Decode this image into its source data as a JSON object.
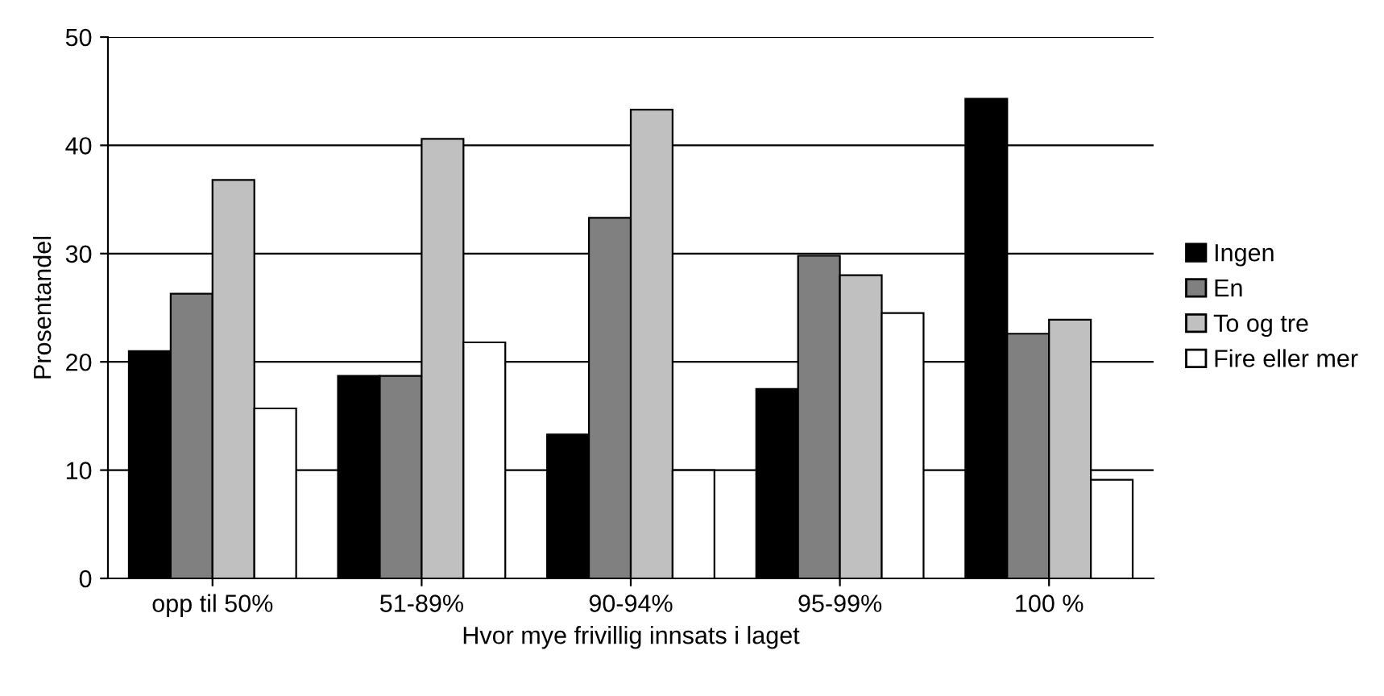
{
  "chart_data": {
    "type": "bar",
    "xlabel": "Hvor mye frivillig innsats i laget",
    "ylabel": "Prosentandel",
    "categories": [
      "opp til 50%",
      "51-89%",
      "90-94%",
      "95-99%",
      "100 %"
    ],
    "series": [
      {
        "name": "Ingen",
        "color": "#000000",
        "values": [
          21.0,
          18.7,
          13.3,
          17.5,
          44.3
        ]
      },
      {
        "name": "En",
        "color": "#808080",
        "values": [
          26.3,
          18.7,
          33.3,
          29.8,
          22.6
        ]
      },
      {
        "name": "To og tre",
        "color": "#c0c0c0",
        "values": [
          36.8,
          40.6,
          43.3,
          28.0,
          23.9
        ]
      },
      {
        "name": "Fire eller mer",
        "color": "#ffffff",
        "values": [
          15.7,
          21.8,
          10.0,
          24.5,
          9.1
        ]
      }
    ],
    "ylim": [
      0,
      50
    ],
    "yticks": [
      0,
      10,
      20,
      30,
      40,
      50
    ],
    "grid": "y",
    "legend": "right"
  }
}
